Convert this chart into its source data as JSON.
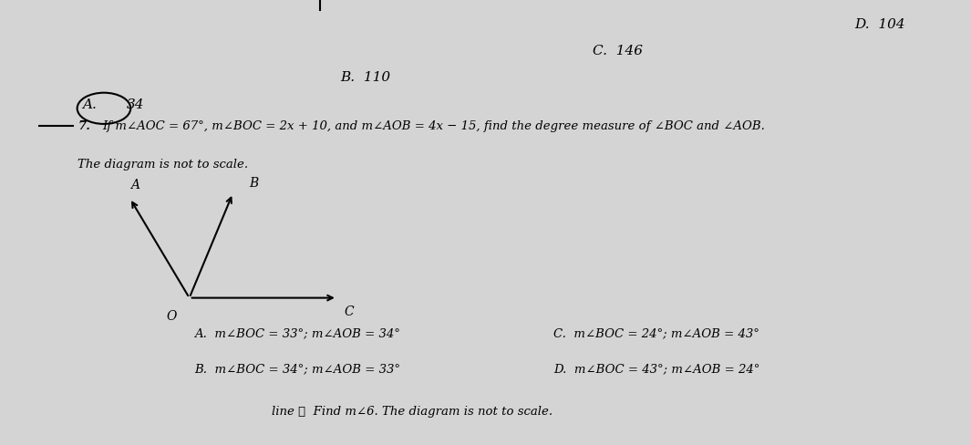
{
  "bg_color": "#d4d4d4",
  "title_top_right": "D.  104",
  "title_c": "C.  146",
  "title_b": "B.  110",
  "answer_a_circled": "A.",
  "answer_a_val": "34",
  "question_number": "7.",
  "question_text": "If m∠AOC = 67°, m∠BOC = 2x + 10, and m∠AOB = 4x − 15, find the degree measure of ∠BOC and ∠AOB.",
  "note": "The diagram is not to scale.",
  "diagram_O_label": "O",
  "diagram_A_label": "A",
  "diagram_B_label": "B",
  "diagram_C_label": "C",
  "answers": [
    "A.  m∠BOC = 33°; m∠AOB = 34°",
    "B.  m∠BOC = 34°; m∠AOB = 33°",
    "C.  m∠BOC = 24°; m∠AOB = 43°",
    "D.  m∠BOC = 43°; m∠AOB = 24°"
  ],
  "bottom_text": "line ℓ  Find m∠6. The diagram is not to scale."
}
